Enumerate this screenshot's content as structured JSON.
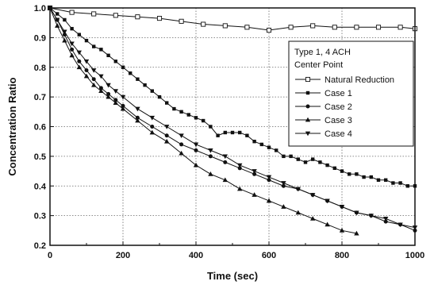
{
  "chart_data": {
    "type": "line",
    "xlabel": "Time (sec)",
    "ylabel": "Concentration Ratio",
    "xlim": [
      0,
      1000
    ],
    "ylim": [
      0.2,
      1.0
    ],
    "xticks": [
      0,
      200,
      400,
      600,
      800,
      1000
    ],
    "yticks": [
      0.2,
      0.3,
      0.4,
      0.5,
      0.6,
      0.7,
      0.8,
      0.9,
      1.0
    ],
    "grid": true,
    "legend_position": "top-right",
    "annotations": [
      "Type 1, 4 ACH",
      "Center Point"
    ],
    "series": [
      {
        "name": "Natural Reduction",
        "marker": "open-square",
        "x": [
          0,
          60,
          120,
          180,
          240,
          300,
          360,
          420,
          480,
          540,
          600,
          660,
          720,
          780,
          840,
          900,
          960,
          1000
        ],
        "y": [
          1.0,
          0.985,
          0.98,
          0.975,
          0.97,
          0.965,
          0.955,
          0.945,
          0.94,
          0.935,
          0.925,
          0.935,
          0.94,
          0.935,
          0.935,
          0.935,
          0.935,
          0.93
        ]
      },
      {
        "name": "Case 1",
        "marker": "filled-square",
        "x": [
          0,
          20,
          40,
          60,
          80,
          100,
          120,
          140,
          160,
          180,
          200,
          220,
          240,
          260,
          280,
          300,
          320,
          340,
          360,
          380,
          400,
          420,
          440,
          460,
          480,
          500,
          520,
          540,
          560,
          580,
          600,
          620,
          640,
          660,
          680,
          700,
          720,
          740,
          760,
          780,
          800,
          820,
          840,
          860,
          880,
          900,
          920,
          940,
          960,
          980,
          1000
        ],
        "y": [
          1.0,
          0.98,
          0.96,
          0.93,
          0.91,
          0.89,
          0.87,
          0.86,
          0.84,
          0.82,
          0.8,
          0.78,
          0.76,
          0.74,
          0.72,
          0.7,
          0.68,
          0.66,
          0.65,
          0.64,
          0.63,
          0.62,
          0.6,
          0.57,
          0.58,
          0.58,
          0.58,
          0.57,
          0.55,
          0.54,
          0.53,
          0.52,
          0.5,
          0.5,
          0.49,
          0.48,
          0.49,
          0.48,
          0.47,
          0.46,
          0.45,
          0.44,
          0.44,
          0.43,
          0.43,
          0.42,
          0.42,
          0.41,
          0.41,
          0.4,
          0.4
        ]
      },
      {
        "name": "Case 2",
        "marker": "filled-circle",
        "x": [
          0,
          20,
          40,
          60,
          80,
          100,
          120,
          140,
          160,
          180,
          200,
          240,
          280,
          320,
          360,
          400,
          440,
          480,
          520,
          560,
          600,
          640,
          680,
          720,
          760,
          800,
          840,
          880,
          920,
          960,
          1000
        ],
        "y": [
          1.0,
          0.96,
          0.91,
          0.86,
          0.82,
          0.79,
          0.76,
          0.73,
          0.71,
          0.69,
          0.67,
          0.63,
          0.6,
          0.57,
          0.54,
          0.52,
          0.5,
          0.48,
          0.46,
          0.44,
          0.42,
          0.4,
          0.39,
          0.37,
          0.35,
          0.33,
          0.31,
          0.3,
          0.28,
          0.27,
          0.25
        ]
      },
      {
        "name": "Case 3",
        "marker": "filled-triangle-up",
        "x": [
          0,
          20,
          40,
          60,
          80,
          100,
          120,
          140,
          160,
          180,
          200,
          240,
          280,
          320,
          360,
          400,
          440,
          480,
          520,
          560,
          600,
          640,
          680,
          720,
          760,
          800,
          840
        ],
        "y": [
          1.0,
          0.94,
          0.89,
          0.84,
          0.8,
          0.77,
          0.74,
          0.72,
          0.7,
          0.68,
          0.66,
          0.62,
          0.58,
          0.55,
          0.51,
          0.47,
          0.44,
          0.42,
          0.39,
          0.37,
          0.35,
          0.33,
          0.31,
          0.29,
          0.27,
          0.25,
          0.24
        ]
      },
      {
        "name": "Case 4",
        "marker": "filled-triangle-down",
        "x": [
          0,
          20,
          40,
          60,
          80,
          100,
          120,
          140,
          160,
          180,
          200,
          240,
          280,
          320,
          360,
          400,
          440,
          480,
          520,
          560,
          600,
          640,
          680,
          720,
          760,
          800,
          840,
          880,
          920,
          960,
          1000
        ],
        "y": [
          1.0,
          0.96,
          0.92,
          0.88,
          0.85,
          0.82,
          0.79,
          0.77,
          0.74,
          0.72,
          0.7,
          0.66,
          0.63,
          0.6,
          0.57,
          0.54,
          0.52,
          0.5,
          0.47,
          0.45,
          0.43,
          0.41,
          0.39,
          0.37,
          0.35,
          0.33,
          0.31,
          0.3,
          0.29,
          0.27,
          0.26
        ]
      }
    ]
  }
}
